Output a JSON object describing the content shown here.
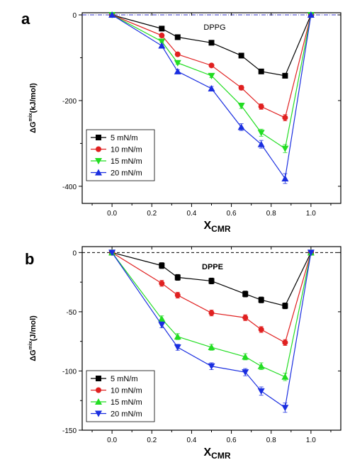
{
  "chart_data": [
    {
      "type": "line",
      "panel_label": "a",
      "annotation": "DPPG",
      "xlabel_main": "X",
      "xlabel_sub": "CMR",
      "ylabel_prefix": "ΔG",
      "ylabel_sup": "mix",
      "ylabel_suffix": "(kJ/mol)",
      "xlim": [
        -0.15,
        1.15
      ],
      "ylim": [
        -440,
        5
      ],
      "xticks": [
        0.0,
        0.2,
        0.4,
        0.6,
        0.8,
        1.0
      ],
      "xtick_labels": [
        "0.0",
        "0.2",
        "0.4",
        "0.6",
        "0.8",
        "1.0"
      ],
      "yticks": [
        0,
        -200,
        -400
      ],
      "ytick_labels": [
        "0",
        "-200",
        "-400"
      ],
      "reference_line": {
        "y": 0,
        "style": "dash-dot",
        "color": "#3333cc"
      },
      "grid": false,
      "legend_position": "lower-left",
      "x": [
        0.0,
        0.25,
        0.33,
        0.5,
        0.65,
        0.75,
        0.87,
        1.0
      ],
      "series": [
        {
          "name": "5  mN/m",
          "color": "#000000",
          "marker": "square",
          "values": [
            0,
            -32,
            -52,
            -65,
            -95,
            -132,
            -142,
            0
          ]
        },
        {
          "name": "10 mN/m",
          "color": "#e02020",
          "marker": "circle",
          "values": [
            0,
            -48,
            -92,
            -118,
            -170,
            -214,
            -240,
            0
          ]
        },
        {
          "name": "15 mN/m",
          "color": "#22dd22",
          "marker": "triangle-down",
          "values": [
            0,
            -62,
            -112,
            -142,
            -212,
            -275,
            -312,
            0
          ]
        },
        {
          "name": "20 mN/m",
          "color": "#1a2ee0",
          "marker": "triangle-up",
          "values": [
            0,
            -72,
            -132,
            -172,
            -262,
            -302,
            -382,
            0
          ]
        }
      ]
    },
    {
      "type": "line",
      "panel_label": "b",
      "annotation": "DPPE",
      "xlabel_main": "X",
      "xlabel_sub": "CMR",
      "ylabel_prefix": "ΔG",
      "ylabel_sup": "mix",
      "ylabel_suffix": "(J/mol)",
      "xlim": [
        -0.15,
        1.15
      ],
      "ylim": [
        -150,
        5
      ],
      "xticks": [
        0.0,
        0.2,
        0.4,
        0.6,
        0.8,
        1.0
      ],
      "xtick_labels": [
        "0.0",
        "0.2",
        "0.4",
        "0.6",
        "0.8",
        "1.0"
      ],
      "yticks": [
        0,
        -50,
        -100,
        -150
      ],
      "ytick_labels": [
        "0",
        "-50",
        "-100",
        "-150"
      ],
      "reference_line": {
        "y": 0,
        "style": "dashed",
        "color": "#000000"
      },
      "grid": false,
      "legend_position": "lower-left",
      "x": [
        0.0,
        0.25,
        0.33,
        0.5,
        0.67,
        0.75,
        0.87,
        1.0
      ],
      "series": [
        {
          "name": "5  mN/m",
          "color": "#000000",
          "marker": "square",
          "values": [
            0,
            -11,
            -21,
            -24,
            -35,
            -40,
            -45,
            0
          ]
        },
        {
          "name": "10 mN/m",
          "color": "#e02020",
          "marker": "circle",
          "values": [
            0,
            -26,
            -36,
            -51,
            -55,
            -65,
            -76,
            0
          ]
        },
        {
          "name": "15 mN/m",
          "color": "#22dd22",
          "marker": "triangle-up",
          "values": [
            0,
            -56,
            -71,
            -80,
            -88,
            -96,
            -105,
            0
          ]
        },
        {
          "name": "20 mN/m",
          "color": "#1a2ee0",
          "marker": "triangle-down",
          "values": [
            0,
            -61,
            -80,
            -96,
            -101,
            -117,
            -131,
            0
          ]
        }
      ]
    }
  ]
}
